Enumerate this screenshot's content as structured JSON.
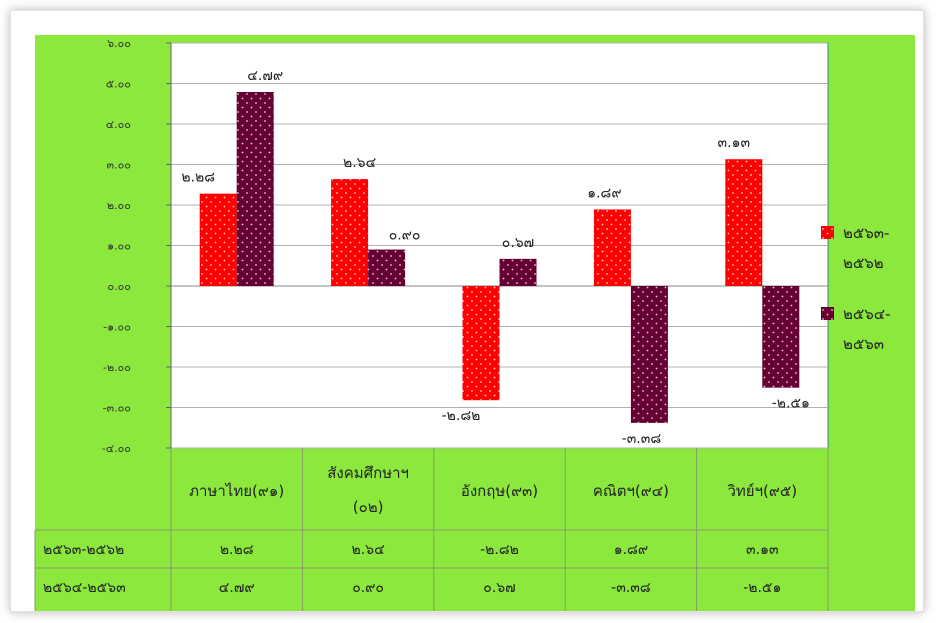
{
  "chart_data": {
    "type": "bar",
    "categories": [
      "ภาษาไทย(๙๑)",
      "สังคมศึกษาฯ (๐๒)",
      "อังกฤษ(๙๓)",
      "คณิตฯ(๙๔)",
      "วิทย์ฯ(๙๕)"
    ],
    "series": [
      {
        "name": "๒๕๖๓-๒๕๖๒",
        "values": [
          2.28,
          2.64,
          -2.82,
          1.89,
          3.13
        ],
        "labels": [
          "๒.๒๘",
          "๒.๖๔",
          "-๒.๘๒",
          "๑.๘๙",
          "๓.๑๓"
        ],
        "color": "#ff0000"
      },
      {
        "name": "๒๕๖๔-๒๕๖๓",
        "values": [
          4.79,
          0.9,
          0.67,
          -3.38,
          -2.51
        ],
        "labels": [
          "๔.๗๙",
          "๐.๙๐",
          "๐.๖๗",
          "-๓.๓๘",
          "-๒.๕๑"
        ],
        "color": "#660033"
      }
    ],
    "ylim": [
      -4,
      6
    ],
    "yticks": [
      {
        "value": 6,
        "label": "๖.๐๐"
      },
      {
        "value": 5,
        "label": "๕.๐๐"
      },
      {
        "value": 4,
        "label": "๔.๐๐"
      },
      {
        "value": 3,
        "label": "๓.๐๐"
      },
      {
        "value": 2,
        "label": "๒.๐๐"
      },
      {
        "value": 1,
        "label": "๑.๐๐"
      },
      {
        "value": 0,
        "label": "๐.๐๐"
      },
      {
        "value": -1,
        "label": "-๑.๐๐"
      },
      {
        "value": -2,
        "label": "-๒.๐๐"
      },
      {
        "value": -3,
        "label": "-๓.๐๐"
      },
      {
        "value": -4,
        "label": "-๔.๐๐"
      }
    ],
    "grid": true,
    "legend": "right",
    "table": [
      {
        "label": "๒๕๖๓-๒๕๖๒",
        "cells": [
          "๒.๒๘",
          "๒.๖๔",
          "-๒.๘๒",
          "๑.๘๙",
          "๓.๑๓"
        ]
      },
      {
        "label": "๒๕๖๔-๒๕๖๓",
        "cells": [
          "๔.๗๙",
          "๐.๙๐",
          "๐.๖๗",
          "-๓.๓๘",
          "-๒.๕๑"
        ]
      }
    ],
    "colors": {
      "background": "#8ce83c",
      "plot": "#ffffff",
      "grid": "#b0b0b0"
    }
  }
}
